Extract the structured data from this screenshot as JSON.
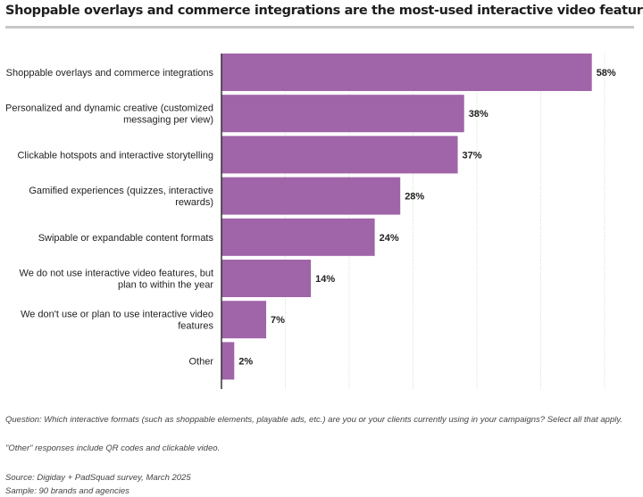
{
  "colors": {
    "bar": "#a064a8",
    "grid": "#d8d8d8",
    "axis": "#333333"
  },
  "chart_data": {
    "type": "bar",
    "orientation": "horizontal",
    "title": "Shoppable overlays and commerce integrations are the most-used interactive video features",
    "categories": [
      [
        "Shoppable overlays and commerce integrations"
      ],
      [
        "Personalized and dynamic creative (customized",
        "messaging per view)"
      ],
      [
        "Clickable hotspots and interactive storytelling"
      ],
      [
        "Gamified experiences (quizzes, interactive",
        "rewards)"
      ],
      [
        "Swipable or expandable content formats"
      ],
      [
        "We do not use interactive video features, but",
        "plan to within the year"
      ],
      [
        "We don't use or plan to use interactive video",
        "features"
      ],
      [
        "Other"
      ]
    ],
    "values": [
      58,
      38,
      37,
      28,
      24,
      14,
      7,
      2
    ],
    "value_labels": [
      "58%",
      "38%",
      "37%",
      "28%",
      "24%",
      "14%",
      "7%",
      "2%"
    ],
    "unit": "%",
    "xlim": [
      0,
      60
    ],
    "grid": true,
    "legend": "none"
  },
  "footer": {
    "question": "Question: Which interactive formats (such as shoppable elements, playable ads, etc.) are you or your clients currently using in your campaigns? Select all that apply.",
    "other_note": "\"Other\" responses include QR codes and clickable video.",
    "source": "Source: Digiday + PadSquad survey, March 2025",
    "sample": "Sample: 90 brands and agencies"
  }
}
